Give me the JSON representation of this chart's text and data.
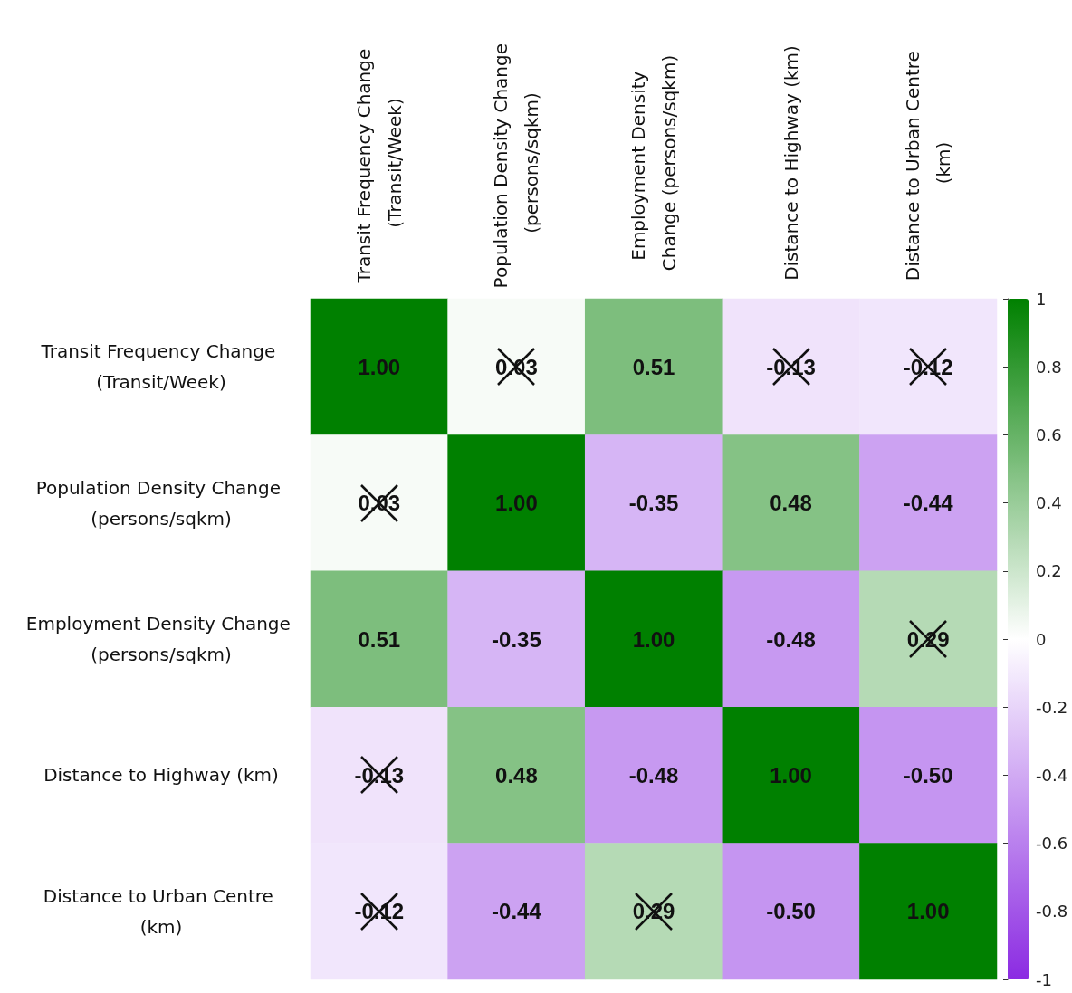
{
  "chart_data": {
    "type": "heatmap",
    "categories": [
      "Transit Frequency Change (Transit/Week)",
      "Population Density Change (persons/sqkm)",
      "Employment Density Change (persons/sqkm)",
      "Distance to Highway (km)",
      "Distance to Urban Centre (km)"
    ],
    "y_categories": [
      "Transit Frequency Change (Transit/Week)",
      "Population Density Change (persons/sqkm)",
      "Employment Density Change (persons/sqkm)",
      "Distance to Highway (km)",
      "Distance to Urban Centre (km)"
    ],
    "cells": [
      [
        1,
        0.03,
        0.51,
        -0.13,
        -0.12
      ],
      [
        0.03,
        1,
        -0.35,
        0.48,
        -0.44
      ],
      [
        0.51,
        -0.35,
        1,
        -0.48,
        0.29
      ],
      [
        -0.13,
        0.48,
        -0.48,
        1,
        -0.5
      ],
      [
        -0.12,
        -0.44,
        0.29,
        -0.5,
        1
      ]
    ],
    "cell_labels": [
      [
        "1.00",
        "0.03",
        "0.51",
        "-0.13",
        "-0.12"
      ],
      [
        "0.03",
        "1.00",
        "-0.35",
        "0.48",
        "-0.44"
      ],
      [
        "0.51",
        "-0.35",
        "1.00",
        "-0.48",
        "0.29"
      ],
      [
        "-0.13",
        "0.48",
        "-0.48",
        "1.00",
        "-0.50"
      ],
      [
        "-0.12",
        "-0.44",
        "0.29",
        "-0.50",
        "1.00"
      ]
    ],
    "clim": [
      -1,
      1
    ],
    "cticks": [
      -1,
      -0.8,
      -0.6,
      -0.4,
      -0.2,
      0,
      0.2,
      0.4,
      0.6,
      0.8,
      1
    ]
  }
}
